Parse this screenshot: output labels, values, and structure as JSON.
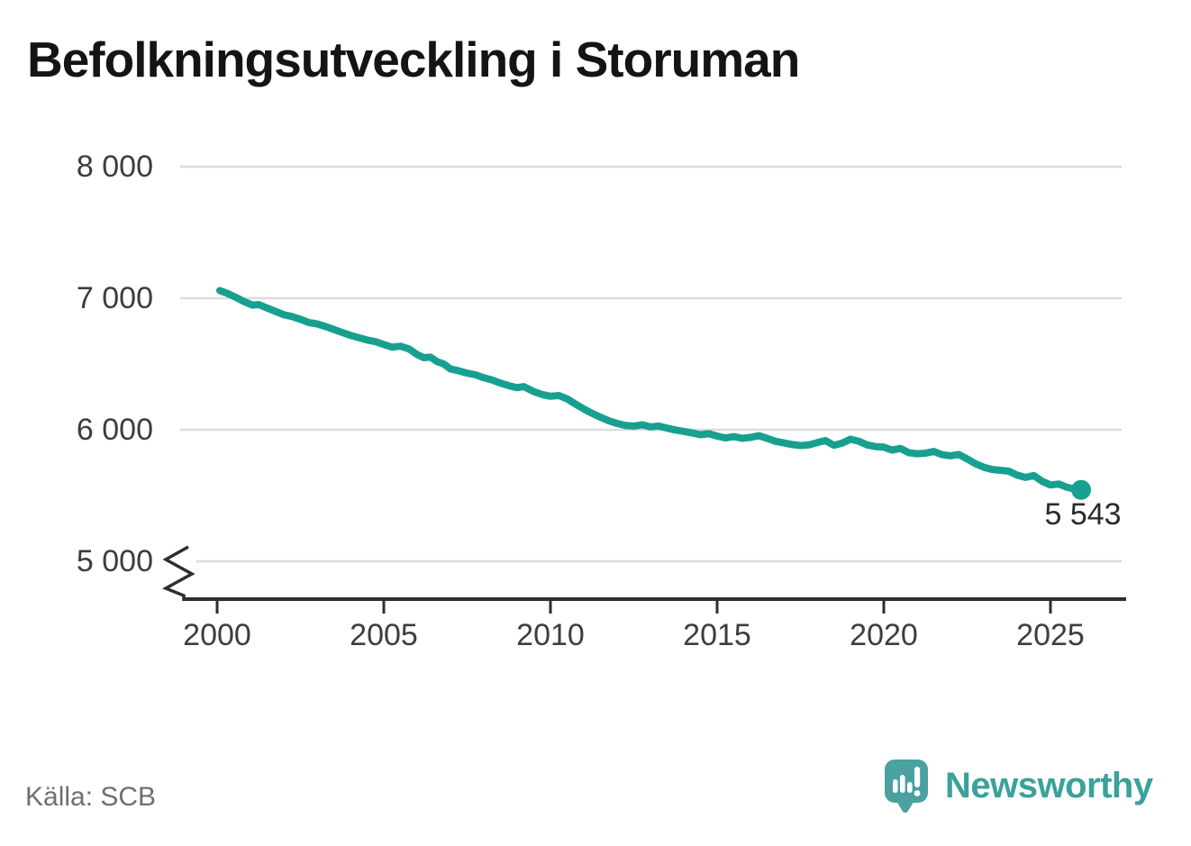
{
  "title": "Befolkningsutveckling i Storuman",
  "footer": {
    "source": "Källa: SCB",
    "brand": "Newsworthy"
  },
  "colors": {
    "line": "#17a08f",
    "grid": "#dcdcdc",
    "axis": "#2e2e2e",
    "tick_text": "#3d3d3d",
    "title_text": "#141414",
    "source_text": "#6f6f6f",
    "end_label_text": "#2b2b2b",
    "logo_bubble": "#4aa1a0",
    "brand_text": "#3aa19b"
  },
  "chart_data": {
    "type": "line",
    "title": "Befolkningsutveckling i Storuman",
    "xlabel": "",
    "ylabel": "",
    "grid": "horizontal",
    "legend": "none",
    "x_range": [
      2000,
      2027.3
    ],
    "y_range_visible": [
      5000,
      8000
    ],
    "y_axis_break": true,
    "x_ticks": [
      {
        "value": 2000,
        "label": "2000"
      },
      {
        "value": 2005,
        "label": "2005"
      },
      {
        "value": 2010,
        "label": "2010"
      },
      {
        "value": 2015,
        "label": "2015"
      },
      {
        "value": 2020,
        "label": "2020"
      },
      {
        "value": 2025,
        "label": "2025"
      }
    ],
    "y_ticks": [
      {
        "value": 8000,
        "label": "8 000"
      },
      {
        "value": 7000,
        "label": "7 000"
      },
      {
        "value": 6000,
        "label": "6 000"
      },
      {
        "value": 5000,
        "label": "5 000"
      }
    ],
    "end_point": {
      "x": 2025.92,
      "y": 5543,
      "label": "5 543"
    },
    "series": [
      {
        "name": "befolkning",
        "points": [
          [
            2000.08,
            7058
          ],
          [
            2000.3,
            7038
          ],
          [
            2000.55,
            7008
          ],
          [
            2000.8,
            6975
          ],
          [
            2001.05,
            6948
          ],
          [
            2001.25,
            6952
          ],
          [
            2001.5,
            6925
          ],
          [
            2001.75,
            6900
          ],
          [
            2002.0,
            6875
          ],
          [
            2002.25,
            6860
          ],
          [
            2002.5,
            6840
          ],
          [
            2002.75,
            6815
          ],
          [
            2003.0,
            6805
          ],
          [
            2003.25,
            6785
          ],
          [
            2003.5,
            6762
          ],
          [
            2003.75,
            6740
          ],
          [
            2004.0,
            6718
          ],
          [
            2004.25,
            6700
          ],
          [
            2004.5,
            6682
          ],
          [
            2004.75,
            6670
          ],
          [
            2005.0,
            6648
          ],
          [
            2005.25,
            6628
          ],
          [
            2005.5,
            6635
          ],
          [
            2005.75,
            6615
          ],
          [
            2006.0,
            6572
          ],
          [
            2006.2,
            6548
          ],
          [
            2006.4,
            6552
          ],
          [
            2006.6,
            6518
          ],
          [
            2006.8,
            6500
          ],
          [
            2007.0,
            6462
          ],
          [
            2007.25,
            6448
          ],
          [
            2007.5,
            6430
          ],
          [
            2007.75,
            6418
          ],
          [
            2008.0,
            6395
          ],
          [
            2008.25,
            6378
          ],
          [
            2008.5,
            6355
          ],
          [
            2008.75,
            6335
          ],
          [
            2009.0,
            6320
          ],
          [
            2009.2,
            6328
          ],
          [
            2009.5,
            6290
          ],
          [
            2009.75,
            6268
          ],
          [
            2010.0,
            6255
          ],
          [
            2010.25,
            6260
          ],
          [
            2010.5,
            6235
          ],
          [
            2010.75,
            6195
          ],
          [
            2011.0,
            6158
          ],
          [
            2011.25,
            6125
          ],
          [
            2011.5,
            6095
          ],
          [
            2011.75,
            6068
          ],
          [
            2012.0,
            6048
          ],
          [
            2012.25,
            6032
          ],
          [
            2012.5,
            6028
          ],
          [
            2012.75,
            6038
          ],
          [
            2013.0,
            6022
          ],
          [
            2013.25,
            6028
          ],
          [
            2013.5,
            6012
          ],
          [
            2013.75,
            5998
          ],
          [
            2014.0,
            5988
          ],
          [
            2014.25,
            5975
          ],
          [
            2014.5,
            5962
          ],
          [
            2014.75,
            5970
          ],
          [
            2015.0,
            5952
          ],
          [
            2015.25,
            5938
          ],
          [
            2015.5,
            5948
          ],
          [
            2015.75,
            5935
          ],
          [
            2016.0,
            5942
          ],
          [
            2016.25,
            5955
          ],
          [
            2016.5,
            5935
          ],
          [
            2016.75,
            5912
          ],
          [
            2017.0,
            5900
          ],
          [
            2017.25,
            5888
          ],
          [
            2017.5,
            5880
          ],
          [
            2017.75,
            5885
          ],
          [
            2018.0,
            5902
          ],
          [
            2018.25,
            5918
          ],
          [
            2018.5,
            5882
          ],
          [
            2018.75,
            5898
          ],
          [
            2019.0,
            5928
          ],
          [
            2019.25,
            5912
          ],
          [
            2019.5,
            5885
          ],
          [
            2019.75,
            5872
          ],
          [
            2020.0,
            5868
          ],
          [
            2020.25,
            5845
          ],
          [
            2020.5,
            5858
          ],
          [
            2020.75,
            5825
          ],
          [
            2021.0,
            5818
          ],
          [
            2021.25,
            5822
          ],
          [
            2021.5,
            5835
          ],
          [
            2021.75,
            5810
          ],
          [
            2022.0,
            5802
          ],
          [
            2022.25,
            5812
          ],
          [
            2022.5,
            5778
          ],
          [
            2022.75,
            5742
          ],
          [
            2023.0,
            5715
          ],
          [
            2023.25,
            5698
          ],
          [
            2023.5,
            5692
          ],
          [
            2023.75,
            5685
          ],
          [
            2024.0,
            5655
          ],
          [
            2024.25,
            5638
          ],
          [
            2024.5,
            5652
          ],
          [
            2024.75,
            5608
          ],
          [
            2025.0,
            5580
          ],
          [
            2025.25,
            5588
          ],
          [
            2025.5,
            5562
          ],
          [
            2025.75,
            5548
          ],
          [
            2025.92,
            5543
          ]
        ]
      }
    ]
  }
}
